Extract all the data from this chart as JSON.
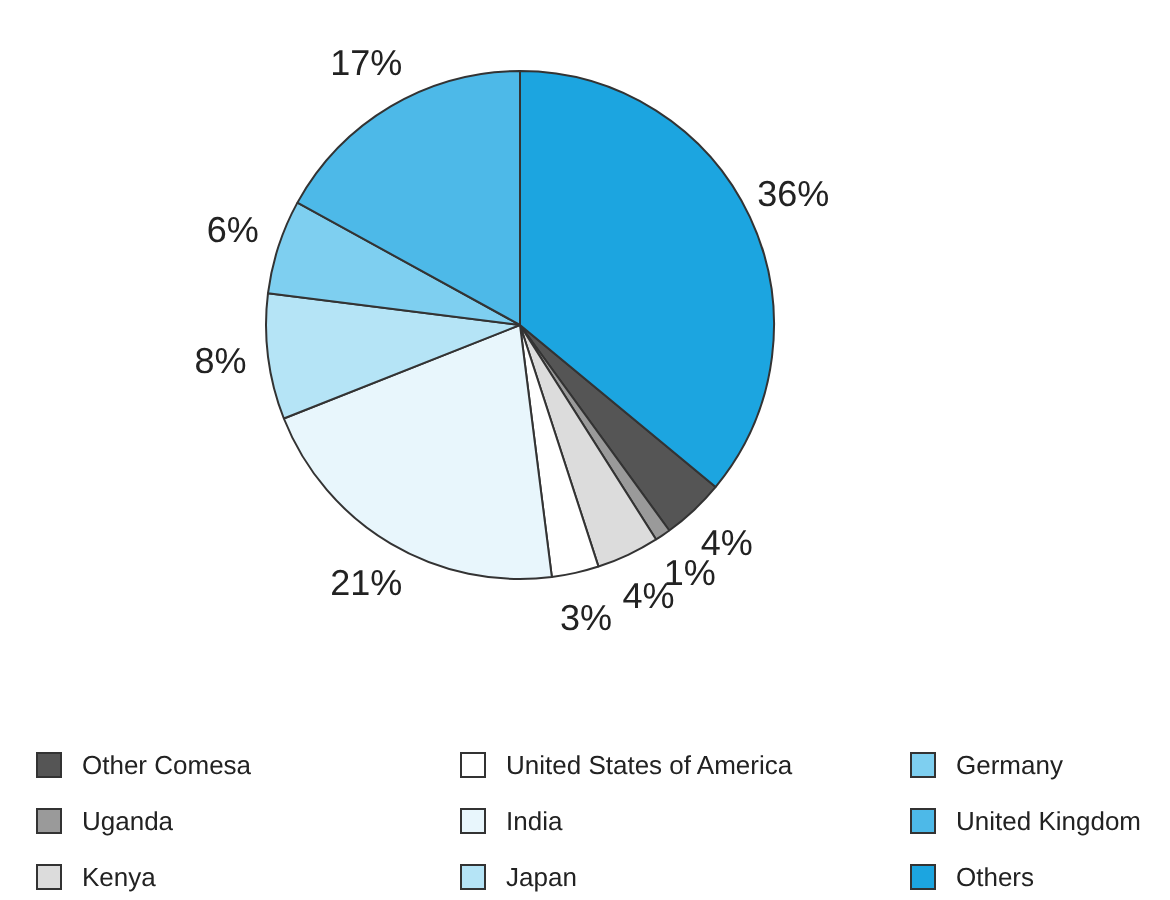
{
  "chart_data": {
    "type": "pie",
    "categories": [
      "Other Comesa",
      "Uganda",
      "Kenya",
      "United States of America",
      "India",
      "Japan",
      "Germany",
      "United Kingdom",
      "Others"
    ],
    "values": [
      4,
      1,
      4,
      3,
      21,
      8,
      6,
      17,
      36
    ],
    "colors": [
      "#555555",
      "#9a9a9a",
      "#dcdcdc",
      "#ffffff",
      "#e8f6fc",
      "#b5e4f6",
      "#7ecff0",
      "#4db9e8",
      "#1ca5e0"
    ],
    "value_labels": [
      "4%",
      "1%",
      "4%",
      "3%",
      "21%",
      "8%",
      "6%",
      "17%",
      "36%"
    ],
    "legend": "bottom"
  }
}
